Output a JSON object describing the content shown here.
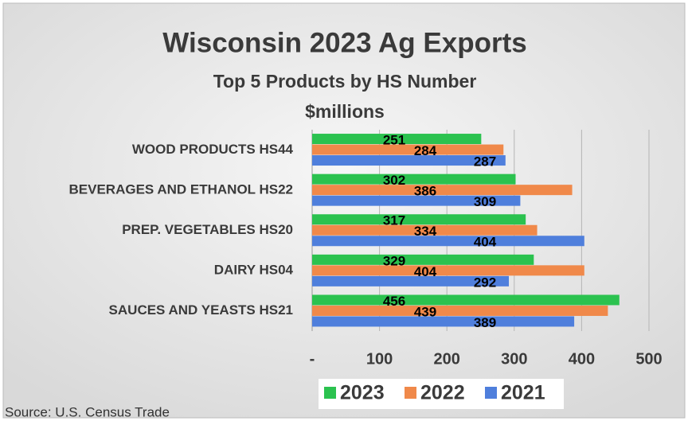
{
  "chart_data": {
    "type": "bar",
    "orientation": "horizontal",
    "title": "Wisconsin 2023 Ag Exports",
    "subtitle": "Top 5 Products by HS Number",
    "unit_label": "$millions",
    "categories": [
      "WOOD PRODUCTS HS44",
      "BEVERAGES AND ETHANOL HS22",
      "PREP. VEGETABLES HS20",
      "DAIRY HS04",
      "SAUCES AND YEASTS HS21"
    ],
    "series": [
      {
        "name": "2023",
        "color": "#2bc24f",
        "values": [
          251,
          302,
          317,
          329,
          456
        ]
      },
      {
        "name": "2022",
        "color": "#f0894a",
        "values": [
          284,
          386,
          334,
          404,
          439
        ]
      },
      {
        "name": "2021",
        "color": "#4f7fdc",
        "values": [
          287,
          309,
          404,
          292,
          389
        ]
      }
    ],
    "xlim": [
      0,
      500
    ],
    "xticks": [
      {
        "value": 0,
        "label": "-"
      },
      100,
      200,
      300,
      400,
      500
    ],
    "grid": true,
    "legend": "bottom",
    "source": "Source: U.S. Census Trade"
  }
}
